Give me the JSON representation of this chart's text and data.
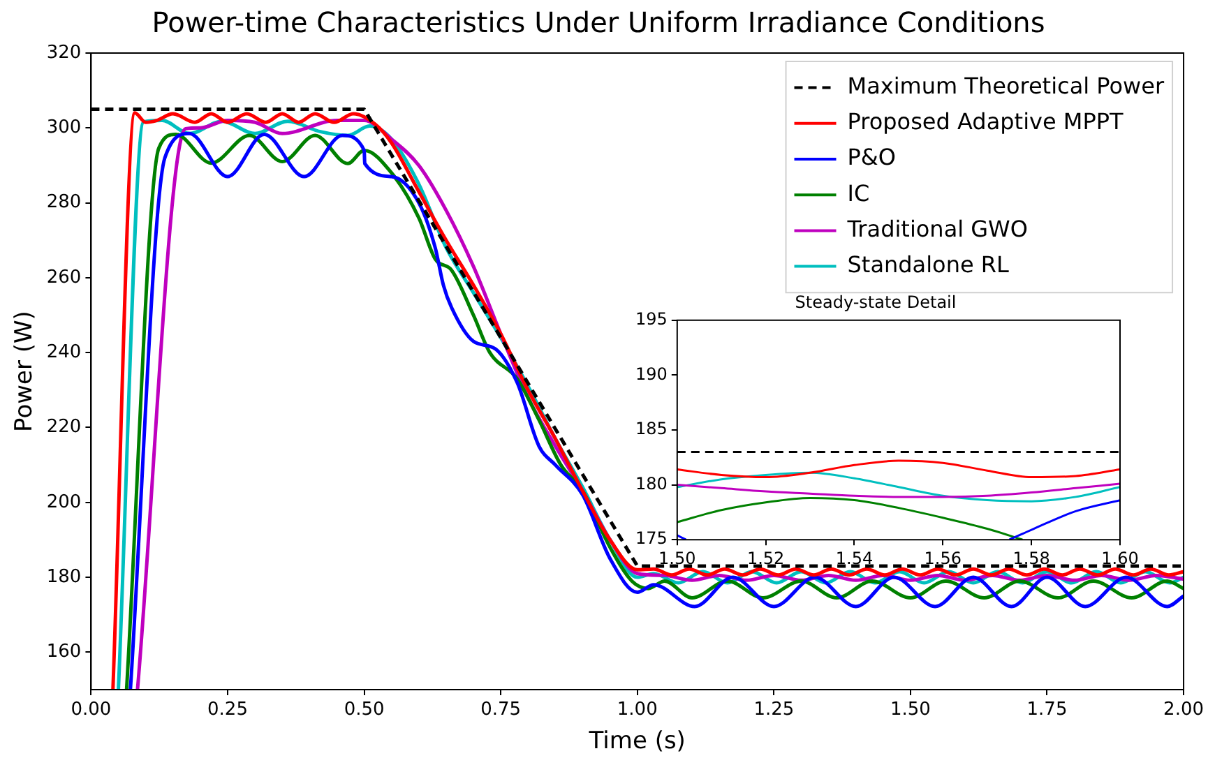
{
  "chart_data": [
    {
      "type": "line",
      "title": "Power-time Characteristics Under Uniform Irradiance Conditions",
      "xlabel": "Time (s)",
      "ylabel": "Power (W)",
      "xlim": [
        0,
        2
      ],
      "ylim": [
        150,
        320
      ],
      "xticks": [
        {
          "value": 0,
          "label": "0.00"
        },
        {
          "value": 0.25,
          "label": "0.25"
        },
        {
          "value": 0.5,
          "label": "0.50"
        },
        {
          "value": 0.75,
          "label": "0.75"
        },
        {
          "value": 1,
          "label": "1.00"
        },
        {
          "value": 1.25,
          "label": "1.25"
        },
        {
          "value": 1.5,
          "label": "1.50"
        },
        {
          "value": 1.75,
          "label": "1.75"
        },
        {
          "value": 2,
          "label": "2.00"
        }
      ],
      "yticks": [
        160,
        180,
        200,
        220,
        240,
        260,
        280,
        300,
        320
      ],
      "grid": false,
      "legend": "top right",
      "series": [
        {
          "name": "Maximum Theoretical Power",
          "color": "#000000",
          "line_style": "dashed",
          "x": [
            0,
            0.5,
            1.0,
            2.0
          ],
          "values": [
            305,
            305,
            183,
            183
          ]
        },
        {
          "name": "Proposed Adaptive MPPT",
          "color": "#ff0000",
          "x": [
            0.04,
            0.08,
            0.1,
            0.12,
            0.15,
            0.19,
            0.22,
            0.25,
            0.285,
            0.32,
            0.35,
            0.38,
            0.41,
            0.445,
            0.48,
            0.52,
            0.55,
            0.6,
            0.65,
            0.7,
            0.75,
            0.8,
            0.85,
            0.9,
            0.95,
            1.0,
            1.03,
            1.063,
            1.095,
            1.128,
            1.16,
            1.193,
            1.225,
            1.258,
            1.29,
            1.323,
            1.355,
            1.388,
            1.42,
            1.453,
            1.485,
            1.518,
            1.55,
            1.583,
            1.615,
            1.648,
            1.68,
            1.713,
            1.745,
            1.778,
            1.81,
            1.843,
            1.875,
            1.908,
            1.94,
            1.973,
            2.0
          ],
          "values": [
            150,
            304,
            301.5,
            302,
            303.8,
            301.5,
            303.8,
            301.5,
            303.8,
            301.5,
            303.8,
            301.5,
            303.8,
            301.5,
            303.8,
            301,
            296,
            283,
            270,
            258,
            245,
            230,
            217,
            203,
            190,
            182,
            182.2,
            180.6,
            182.2,
            180.6,
            182.2,
            180.6,
            182.2,
            180.6,
            182.2,
            180.6,
            182.2,
            180.6,
            182.2,
            180.6,
            182.2,
            180.6,
            182.2,
            180.6,
            182.2,
            180.6,
            182.2,
            180.6,
            182.2,
            180.6,
            182.2,
            180.6,
            182.2,
            180.6,
            182.2,
            180.6,
            181.5
          ]
        },
        {
          "name": "P&O",
          "color": "#0000ff",
          "x": [
            0.072,
            0.135,
            0.18,
            0.25,
            0.317,
            0.39,
            0.46,
            0.5,
            0.501,
            0.55,
            0.6,
            0.63,
            0.645,
            0.66,
            0.7,
            0.74,
            0.78,
            0.82,
            0.85,
            0.9,
            0.95,
            1.0,
            1.03,
            1.105,
            1.175,
            1.25,
            1.325,
            1.4,
            1.47,
            1.545,
            1.615,
            1.685,
            1.75,
            1.82,
            1.895,
            1.97,
            2.0
          ],
          "values": [
            150,
            292,
            298.5,
            287,
            298.3,
            287,
            298,
            294,
            290.5,
            287,
            280,
            268,
            258,
            252,
            243,
            241,
            232,
            215,
            210,
            202,
            185,
            176,
            178,
            172.2,
            180,
            172.2,
            180,
            172.2,
            180,
            172.2,
            180,
            172.2,
            180,
            172.2,
            180,
            172.2,
            175
          ]
        },
        {
          "name": "IC",
          "color": "#008000",
          "x": [
            0.065,
            0.124,
            0.155,
            0.22,
            0.29,
            0.35,
            0.41,
            0.47,
            0.5,
            0.55,
            0.6,
            0.63,
            0.66,
            0.7,
            0.73,
            0.78,
            0.82,
            0.86,
            0.9,
            0.95,
            0.99,
            1.02,
            1.05,
            1.1,
            1.165,
            1.23,
            1.3,
            1.365,
            1.43,
            1.5,
            1.565,
            1.635,
            1.7,
            1.77,
            1.835,
            1.905,
            1.97,
            2.0
          ],
          "values": [
            150,
            294.6,
            298.3,
            290.6,
            298,
            291,
            298,
            290.5,
            294,
            288,
            276,
            265,
            262,
            250,
            240,
            233,
            222,
            210,
            203,
            188,
            179,
            177,
            179,
            174.5,
            179,
            174.5,
            179,
            174.5,
            179,
            174.5,
            179,
            174.5,
            179,
            174.5,
            179,
            174.5,
            179,
            177
          ]
        },
        {
          "name": "Traditional GWO",
          "color": "#bf00bf",
          "x": [
            0.085,
            0.173,
            0.2,
            0.25,
            0.3,
            0.35,
            0.45,
            0.5,
            0.55,
            0.6,
            0.65,
            0.7,
            0.75,
            0.8,
            0.85,
            0.9,
            0.95,
            1.0,
            1.05,
            1.1,
            1.15,
            1.2,
            1.25,
            1.3,
            1.35,
            1.4,
            1.45,
            1.5,
            1.55,
            1.6,
            1.65,
            1.7,
            1.75,
            1.8,
            1.85,
            1.9,
            1.95,
            2.0
          ],
          "values": [
            150,
            299.8,
            300,
            302,
            301.5,
            298.5,
            302,
            302,
            297,
            290,
            278,
            263,
            245,
            228,
            215,
            203,
            190,
            181,
            180.5,
            179.2,
            180.5,
            179.2,
            180.5,
            179.2,
            180.5,
            179.2,
            180.5,
            179.2,
            180.5,
            179.2,
            180.5,
            179.2,
            180.5,
            179.2,
            180.5,
            179.2,
            180.5,
            179.5
          ]
        },
        {
          "name": "Standalone RL",
          "color": "#00bfbf",
          "x": [
            0.05,
            0.096,
            0.13,
            0.18,
            0.24,
            0.3,
            0.36,
            0.42,
            0.47,
            0.51,
            0.55,
            0.6,
            0.65,
            0.7,
            0.75,
            0.8,
            0.85,
            0.9,
            0.95,
            1.0,
            1.03,
            1.075,
            1.12,
            1.165,
            1.21,
            1.255,
            1.3,
            1.345,
            1.39,
            1.435,
            1.48,
            1.525,
            1.57,
            1.615,
            1.66,
            1.705,
            1.75,
            1.795,
            1.84,
            1.885,
            1.93,
            1.975,
            2.0
          ],
          "values": [
            150,
            301.6,
            302,
            298.5,
            301.8,
            298.5,
            301.8,
            299,
            298,
            300.5,
            297,
            285,
            268,
            256,
            244,
            231,
            217,
            204,
            190,
            180,
            181,
            178.5,
            181.5,
            178.5,
            181.5,
            178.5,
            181.5,
            178.5,
            181.5,
            178.5,
            181.5,
            178.5,
            181.5,
            178.5,
            181.5,
            178.5,
            181.5,
            178.5,
            181.5,
            178.5,
            181.5,
            178.5,
            180
          ]
        }
      ]
    },
    {
      "type": "line",
      "title": "Steady-state Detail",
      "xlim": [
        1.5,
        1.6
      ],
      "ylim": [
        175,
        195
      ],
      "xticks": [
        {
          "value": 1.5,
          "label": "1.50"
        },
        {
          "value": 1.52,
          "label": "1.52"
        },
        {
          "value": 1.54,
          "label": "1.54"
        },
        {
          "value": 1.56,
          "label": "1.56"
        },
        {
          "value": 1.58,
          "label": "1.58"
        },
        {
          "value": 1.6,
          "label": "1.60"
        }
      ],
      "yticks": [
        175,
        180,
        185,
        190,
        195
      ],
      "grid": false,
      "series": [
        {
          "color": "#000000",
          "line_style": "dashed",
          "x": [
            1.5,
            1.6
          ],
          "values": [
            183,
            183
          ]
        },
        {
          "color": "#ff0000",
          "x": [
            1.5,
            1.51,
            1.52,
            1.53,
            1.54,
            1.55,
            1.56,
            1.57,
            1.58,
            1.59,
            1.6
          ],
          "values": [
            181.4,
            180.9,
            180.7,
            181.1,
            181.8,
            182.2,
            182,
            181.3,
            180.7,
            180.8,
            181.4
          ]
        },
        {
          "color": "#0000ff",
          "x": [
            1.5,
            1.502,
            1.503,
            1.575,
            1.58,
            1.59,
            1.6
          ],
          "values": [
            175.4,
            175,
            null,
            175,
            175.9,
            177.6,
            178.6
          ]
        },
        {
          "color": "#008000",
          "x": [
            1.5,
            1.51,
            1.52,
            1.53,
            1.54,
            1.55,
            1.56,
            1.57,
            1.578
          ],
          "values": [
            176.6,
            177.7,
            178.4,
            178.8,
            178.6,
            177.9,
            177,
            176,
            175
          ]
        },
        {
          "color": "#bf00bf",
          "x": [
            1.5,
            1.51,
            1.52,
            1.53,
            1.54,
            1.55,
            1.56,
            1.57,
            1.58,
            1.59,
            1.6
          ],
          "values": [
            180,
            179.7,
            179.4,
            179.2,
            179,
            178.9,
            178.9,
            179,
            179.3,
            179.7,
            180.1
          ]
        },
        {
          "color": "#00bfbf",
          "x": [
            1.5,
            1.51,
            1.52,
            1.53,
            1.54,
            1.55,
            1.56,
            1.57,
            1.58,
            1.59,
            1.6
          ],
          "values": [
            179.8,
            180.5,
            180.9,
            181.1,
            180.6,
            179.8,
            179,
            178.6,
            178.5,
            178.9,
            179.8
          ]
        }
      ]
    }
  ]
}
